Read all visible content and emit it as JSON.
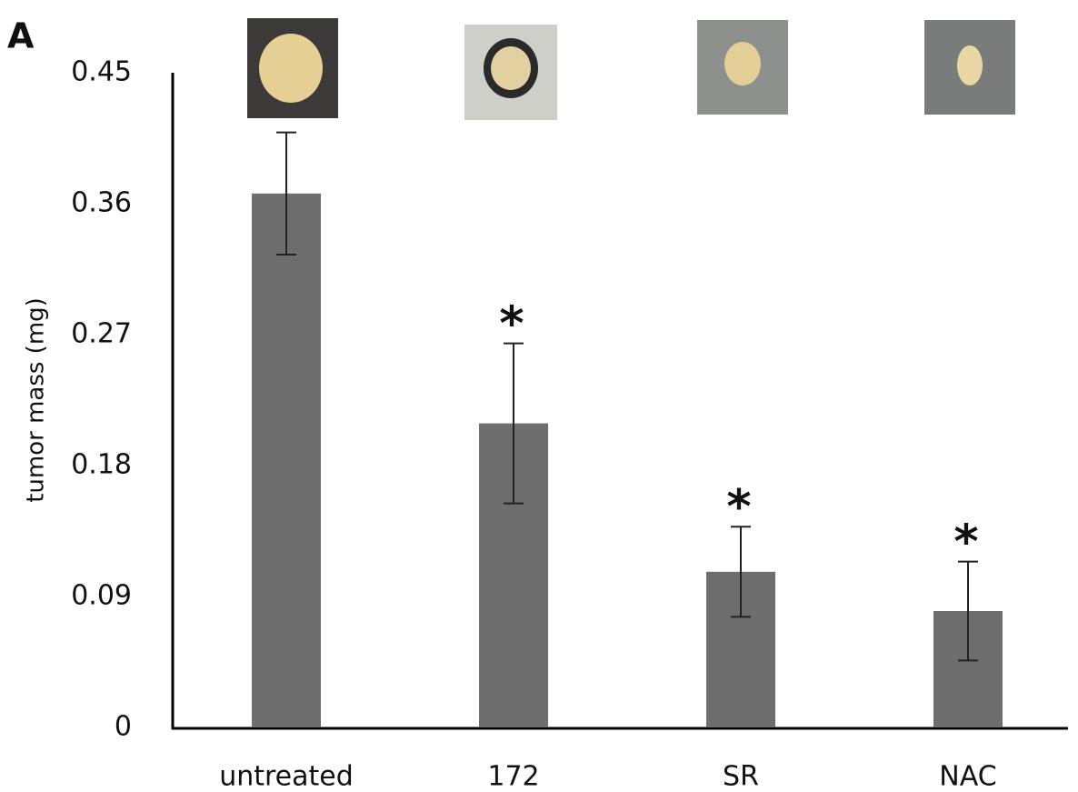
{
  "chart_data": {
    "type": "bar",
    "panel_label": "A",
    "y_label": "tumor mass (mg)",
    "categories": [
      "untreated",
      "172",
      "SR",
      "NAC"
    ],
    "values": [
      0.367,
      0.209,
      0.107,
      0.08
    ],
    "errors": [
      0.042,
      0.055,
      0.031,
      0.034
    ],
    "annotations": [
      null,
      "*",
      "*",
      "*"
    ],
    "color": "#6e6e6e",
    "ylim": [
      0,
      0.45
    ],
    "yticks": [
      0,
      0.09,
      0.18,
      0.27,
      0.36,
      0.45
    ],
    "grid": false
  }
}
